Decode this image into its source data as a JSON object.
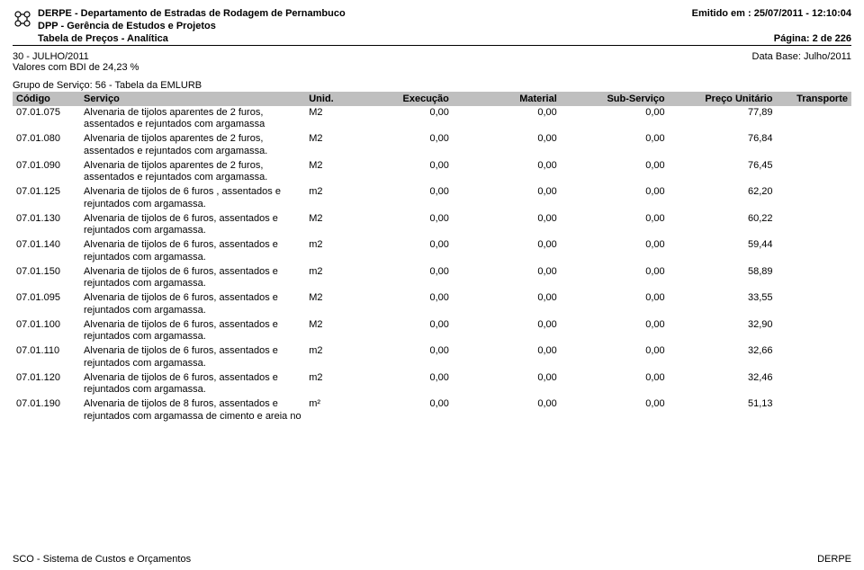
{
  "header": {
    "org1": "DERPE - Departamento de Estradas de Rodagem de Pernambuco",
    "org2": "DPP - Gerência de Estudos e Projetos",
    "org3": "Tabela de Preços - Analítica",
    "emitted": "Emitido em : 25/07/2011 - 12:10:04",
    "page": "Página: 2 de 226"
  },
  "period": {
    "line1": "30 - JULHO/2011",
    "line2": "Valores com BDI de 24,23 %",
    "base": "Data Base: Julho/2011"
  },
  "group": "Grupo de Serviço: 56 - Tabela da EMLURB",
  "columns": {
    "codigo": "Código",
    "servico": "Serviço",
    "unid": "Unid.",
    "exec": "Execução",
    "mat": "Material",
    "sub": "Sub-Serviço",
    "preco": "Preço Unitário",
    "transp": "Transporte"
  },
  "rows": [
    {
      "codigo": "07.01.075",
      "servico": "Alvenaria de tijolos aparentes de 2 furos, assentados e rejuntados com argamassa",
      "unid": "M2",
      "exec": "0,00",
      "mat": "0,00",
      "sub": "0,00",
      "preco": "77,89",
      "transp": ""
    },
    {
      "codigo": "07.01.080",
      "servico": "Alvenaria de tijolos aparentes de 2 furos, assentados e rejuntados com argamassa.",
      "unid": "M2",
      "exec": "0,00",
      "mat": "0,00",
      "sub": "0,00",
      "preco": "76,84",
      "transp": ""
    },
    {
      "codigo": "07.01.090",
      "servico": "Alvenaria de tijolos aparentes de 2 furos, assentados e rejuntados com argamassa.",
      "unid": "M2",
      "exec": "0,00",
      "mat": "0,00",
      "sub": "0,00",
      "preco": "76,45",
      "transp": ""
    },
    {
      "codigo": "07.01.125",
      "servico": "Alvenaria de tijolos de 6 furos , assentados e rejuntados com argamassa.",
      "unid": "m2",
      "exec": "0,00",
      "mat": "0,00",
      "sub": "0,00",
      "preco": "62,20",
      "transp": ""
    },
    {
      "codigo": "07.01.130",
      "servico": "Alvenaria de tijolos de 6 furos, assentados e rejuntados com argamassa.",
      "unid": "M2",
      "exec": "0,00",
      "mat": "0,00",
      "sub": "0,00",
      "preco": "60,22",
      "transp": ""
    },
    {
      "codigo": "07.01.140",
      "servico": "Alvenaria de tijolos de 6 furos, assentados e rejuntados com argamassa.",
      "unid": "m2",
      "exec": "0,00",
      "mat": "0,00",
      "sub": "0,00",
      "preco": "59,44",
      "transp": ""
    },
    {
      "codigo": "07.01.150",
      "servico": "Alvenaria de tijolos de 6 furos, assentados e rejuntados com argamassa.",
      "unid": "m2",
      "exec": "0,00",
      "mat": "0,00",
      "sub": "0,00",
      "preco": "58,89",
      "transp": ""
    },
    {
      "codigo": "07.01.095",
      "servico": "Alvenaria de tijolos de 6 furos, assentados e rejuntados com argamassa.",
      "unid": "M2",
      "exec": "0,00",
      "mat": "0,00",
      "sub": "0,00",
      "preco": "33,55",
      "transp": ""
    },
    {
      "codigo": "07.01.100",
      "servico": "Alvenaria de tijolos de 6 furos, assentados e rejuntados com argamassa.",
      "unid": "M2",
      "exec": "0,00",
      "mat": "0,00",
      "sub": "0,00",
      "preco": "32,90",
      "transp": ""
    },
    {
      "codigo": "07.01.110",
      "servico": "Alvenaria de tijolos de 6 furos, assentados e rejuntados com argamassa.",
      "unid": "m2",
      "exec": "0,00",
      "mat": "0,00",
      "sub": "0,00",
      "preco": "32,66",
      "transp": ""
    },
    {
      "codigo": "07.01.120",
      "servico": "Alvenaria de tijolos de 6 furos, assentados e rejuntados com argamassa.",
      "unid": "m2",
      "exec": "0,00",
      "mat": "0,00",
      "sub": "0,00",
      "preco": "32,46",
      "transp": ""
    },
    {
      "codigo": "07.01.190",
      "servico": "Alvenaria de tijolos de 8 furos, assentados e rejuntados com argamassa de cimento  e areia no",
      "unid": "m²",
      "exec": "0,00",
      "mat": "0,00",
      "sub": "0,00",
      "preco": "51,13",
      "transp": ""
    }
  ],
  "footer": {
    "left": "SCO - Sistema de Custos e Orçamentos",
    "right": "DERPE"
  }
}
